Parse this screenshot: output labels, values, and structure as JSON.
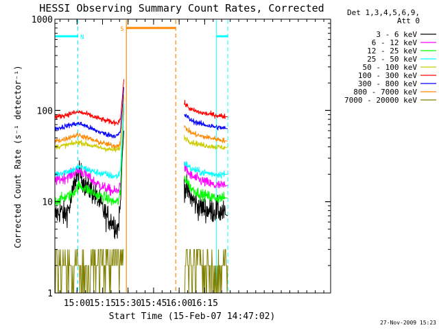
{
  "chart_data": {
    "type": "line",
    "title": "HESSI Observing Summary Count Rates, Corrected",
    "xlabel": "Start Time (15-Feb-07 14:47:02)",
    "ylabel": "Corrected Count Rate (s⁻¹ detector⁻¹)",
    "x_unit": "minutes since 14:47:02",
    "xlim": [
      0,
      162
    ],
    "ylim": [
      1,
      1000
    ],
    "y_scale": "log",
    "x_ticks": [
      {
        "x": 13,
        "label": "15:00"
      },
      {
        "x": 28,
        "label": "15:15"
      },
      {
        "x": 43,
        "label": "15:30"
      },
      {
        "x": 58,
        "label": "15:45"
      },
      {
        "x": 73,
        "label": "16:00"
      },
      {
        "x": 88,
        "label": "16:15"
      }
    ],
    "y_ticks": [
      {
        "y": 1,
        "label": "1"
      },
      {
        "y": 10,
        "label": "10"
      },
      {
        "y": 100,
        "label": "100"
      },
      {
        "y": 1000,
        "label": "1000"
      }
    ],
    "legend": {
      "placement": "right",
      "header": [
        "Det 1,3,4,5,6,9,",
        "Att 0"
      ]
    },
    "segments": [
      {
        "start": 0,
        "end": 40.5
      },
      {
        "start": 76.0,
        "end": 101.6
      }
    ],
    "series": [
      {
        "name": "3 - 6 keV",
        "color": "#000000",
        "noise": 0.14,
        "points": [
          [
            0,
            7
          ],
          [
            3.5,
            8
          ],
          [
            5.5,
            7
          ],
          [
            9,
            9
          ],
          [
            12,
            18
          ],
          [
            15,
            20
          ],
          [
            18,
            15
          ],
          [
            22,
            13
          ],
          [
            26,
            10
          ],
          [
            30,
            7
          ],
          [
            34,
            6
          ],
          [
            37,
            5
          ],
          [
            38.5,
            9
          ],
          [
            39.5,
            30
          ],
          [
            40.5,
            60
          ],
          [
            76,
            15
          ],
          [
            80,
            11
          ],
          [
            84,
            9
          ],
          [
            90,
            8
          ],
          [
            96,
            8
          ],
          [
            101.6,
            7
          ]
        ]
      },
      {
        "name": "6 - 12 keV",
        "color": "#ff00ff",
        "noise": 0.06,
        "points": [
          [
            0,
            17
          ],
          [
            5,
            18
          ],
          [
            10,
            20
          ],
          [
            14,
            22
          ],
          [
            18,
            20
          ],
          [
            24,
            16
          ],
          [
            30,
            14
          ],
          [
            34,
            13
          ],
          [
            37,
            13
          ],
          [
            38.5,
            16
          ],
          [
            39.5,
            40
          ],
          [
            40.5,
            100
          ],
          [
            76,
            24
          ],
          [
            80,
            19
          ],
          [
            86,
            17
          ],
          [
            94,
            15
          ],
          [
            101.6,
            15
          ]
        ]
      },
      {
        "name": "12 - 25 keV",
        "color": "#00ff00",
        "noise": 0.06,
        "points": [
          [
            0,
            10
          ],
          [
            5,
            11
          ],
          [
            10,
            12
          ],
          [
            14,
            15
          ],
          [
            18,
            14
          ],
          [
            24,
            12
          ],
          [
            30,
            11
          ],
          [
            34,
            10
          ],
          [
            37,
            10
          ],
          [
            38.5,
            12
          ],
          [
            39.5,
            40
          ],
          [
            40.5,
            110
          ],
          [
            76,
            19
          ],
          [
            80,
            14
          ],
          [
            86,
            12
          ],
          [
            94,
            11
          ],
          [
            101.6,
            11
          ]
        ]
      },
      {
        "name": "25 - 50 keV",
        "color": "#00ffff",
        "noise": 0.04,
        "points": [
          [
            0,
            20
          ],
          [
            5,
            21
          ],
          [
            10,
            22
          ],
          [
            14,
            24
          ],
          [
            18,
            23
          ],
          [
            24,
            21
          ],
          [
            30,
            20
          ],
          [
            34,
            19
          ],
          [
            37,
            19
          ],
          [
            38.5,
            22
          ],
          [
            39.5,
            50
          ],
          [
            40.5,
            120
          ],
          [
            76,
            27
          ],
          [
            80,
            23
          ],
          [
            86,
            21
          ],
          [
            94,
            20
          ],
          [
            101.6,
            20
          ]
        ]
      },
      {
        "name": "50 - 100 keV",
        "color": "#cccc00",
        "noise": 0.03,
        "points": [
          [
            0,
            40
          ],
          [
            5,
            41
          ],
          [
            10,
            43
          ],
          [
            14,
            45
          ],
          [
            18,
            43
          ],
          [
            24,
            40
          ],
          [
            30,
            38
          ],
          [
            34,
            37
          ],
          [
            37,
            37
          ],
          [
            38.5,
            40
          ],
          [
            39.5,
            80
          ],
          [
            40.5,
            150
          ],
          [
            76,
            51
          ],
          [
            80,
            45
          ],
          [
            86,
            42
          ],
          [
            94,
            40
          ],
          [
            101.6,
            39
          ]
        ]
      },
      {
        "name": "100 - 300 keV",
        "color": "#ff0000",
        "noise": 0.03,
        "points": [
          [
            0,
            84
          ],
          [
            5,
            88
          ],
          [
            10,
            93
          ],
          [
            14,
            96
          ],
          [
            18,
            92
          ],
          [
            24,
            84
          ],
          [
            30,
            77
          ],
          [
            34,
            74
          ],
          [
            37,
            74
          ],
          [
            38.5,
            80
          ],
          [
            39.5,
            130
          ],
          [
            40.5,
            220
          ],
          [
            76,
            120
          ],
          [
            80,
            102
          ],
          [
            86,
            94
          ],
          [
            94,
            89
          ],
          [
            101.6,
            85
          ]
        ]
      },
      {
        "name": "300 - 800 keV",
        "color": "#0000ff",
        "noise": 0.03,
        "points": [
          [
            0,
            63
          ],
          [
            5,
            66
          ],
          [
            10,
            70
          ],
          [
            14,
            72
          ],
          [
            18,
            68
          ],
          [
            24,
            60
          ],
          [
            30,
            55
          ],
          [
            34,
            53
          ],
          [
            37,
            53
          ],
          [
            38.5,
            58
          ],
          [
            39.5,
            100
          ],
          [
            40.5,
            180
          ],
          [
            76,
            91
          ],
          [
            80,
            78
          ],
          [
            86,
            71
          ],
          [
            94,
            66
          ],
          [
            101.6,
            63
          ]
        ]
      },
      {
        "name": "800 - 7000 keV",
        "color": "#ff8800",
        "noise": 0.03,
        "points": [
          [
            0,
            46
          ],
          [
            5,
            48
          ],
          [
            10,
            52
          ],
          [
            14,
            54
          ],
          [
            18,
            51
          ],
          [
            24,
            46
          ],
          [
            30,
            43
          ],
          [
            34,
            41
          ],
          [
            37,
            41
          ],
          [
            38.5,
            45
          ],
          [
            39.5,
            80
          ],
          [
            40.5,
            140
          ],
          [
            76,
            66
          ],
          [
            80,
            57
          ],
          [
            86,
            52
          ],
          [
            94,
            49
          ],
          [
            101.6,
            46
          ]
        ]
      },
      {
        "name": "7000 - 20000 keV",
        "color": "#808000",
        "noise": 0,
        "points": [
          [
            0,
            1
          ]
        ]
      }
    ],
    "annotations": [
      {
        "label": "N",
        "color": "#00ffff",
        "bars": [
          [
            0,
            13.5
          ],
          [
            95,
            101.6
          ]
        ],
        "bar_y": 650,
        "lines": [
          {
            "x": 0,
            "style": "solid"
          },
          {
            "x": 13.5,
            "style": "dashed"
          },
          {
            "x": 95,
            "style": "solid"
          },
          {
            "x": 101.6,
            "style": "dashed"
          }
        ],
        "label_x": 16
      },
      {
        "label": "S",
        "color": "#ff8800",
        "bars": [
          [
            42,
            71
          ]
        ],
        "bar_y": 800,
        "lines": [
          {
            "x": 42,
            "style": "solid"
          },
          {
            "x": 71,
            "style": "dashed"
          }
        ],
        "label_x": 39.5
      }
    ],
    "footer_date": "27-Nov-2009 15:23"
  }
}
